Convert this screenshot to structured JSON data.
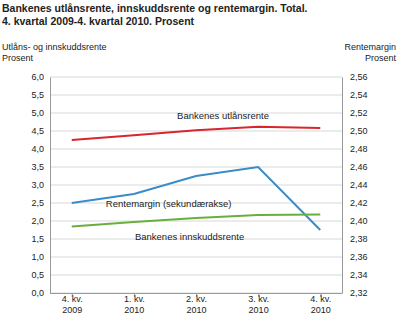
{
  "chart_data": {
    "type": "line",
    "title": [
      "Bankenes utlånsrente, innskuddsrente og rentemargin. Total.",
      "4. kvartal 2009-4. kvartal 2010. Prosent"
    ],
    "y_label": [
      "Utlåns- og innskuddsrente",
      "Prosent"
    ],
    "y2_label": [
      "Rentemargin",
      "Prosent"
    ],
    "categories": [
      "4. kv. 2009",
      "1. kv. 2010",
      "2. kv. 2010",
      "3. kv. 2010",
      "4. kv. 2010"
    ],
    "series": [
      {
        "name": "Bankenes utlånsrente",
        "color": "#d7262e",
        "values": [
          4.25,
          4.38,
          4.52,
          4.62,
          4.58
        ]
      },
      {
        "name": "Rentemargin (sekundærakse)",
        "color": "#3a8cc6",
        "axis": "y2",
        "values": [
          2.42,
          2.43,
          2.45,
          2.46,
          2.39
        ]
      },
      {
        "name": "Bankenes innskuddsrente",
        "color": "#6aaf3d",
        "values": [
          1.85,
          1.97,
          2.08,
          2.17,
          2.18
        ]
      }
    ],
    "ylim": [
      0,
      6
    ],
    "yticks": [
      {
        "value": 0,
        "label": "0,0"
      },
      {
        "value": 0.5,
        "label": "0,5"
      },
      {
        "value": 1,
        "label": "1,0"
      },
      {
        "value": 1.5,
        "label": "1,5"
      },
      {
        "value": 2,
        "label": "2,0"
      },
      {
        "value": 2.5,
        "label": "2,5"
      },
      {
        "value": 3,
        "label": "3,0"
      },
      {
        "value": 3.5,
        "label": "3,5"
      },
      {
        "value": 4,
        "label": "4,0"
      },
      {
        "value": 4.5,
        "label": "4,5"
      },
      {
        "value": 5,
        "label": "5,0"
      },
      {
        "value": 5.5,
        "label": "5,5"
      },
      {
        "value": 6,
        "label": "6,0"
      }
    ],
    "y2lim": [
      2.32,
      2.56
    ],
    "y2ticks": [
      {
        "value": 2.32,
        "label": "2,32"
      },
      {
        "value": 2.34,
        "label": "2,34"
      },
      {
        "value": 2.36,
        "label": "2,36"
      },
      {
        "value": 2.38,
        "label": "2,38"
      },
      {
        "value": 2.4,
        "label": "2,40"
      },
      {
        "value": 2.42,
        "label": "2,42"
      },
      {
        "value": 2.44,
        "label": "2,44"
      },
      {
        "value": 2.46,
        "label": "2,46"
      },
      {
        "value": 2.48,
        "label": "2,48"
      },
      {
        "value": 2.5,
        "label": "2,50"
      },
      {
        "value": 2.52,
        "label": "2,52"
      },
      {
        "value": 2.54,
        "label": "2,54"
      },
      {
        "value": 2.56,
        "label": "2,56"
      }
    ],
    "grid": true
  }
}
